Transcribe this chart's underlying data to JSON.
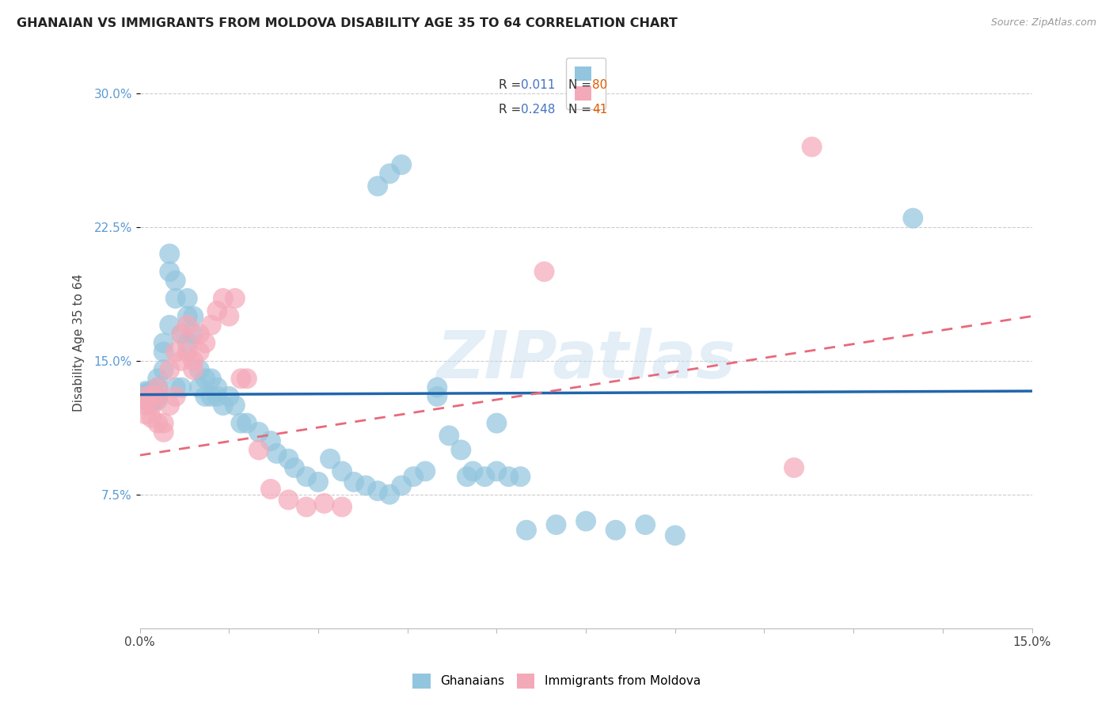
{
  "title": "GHANAIAN VS IMMIGRANTS FROM MOLDOVA DISABILITY AGE 35 TO 64 CORRELATION CHART",
  "source": "Source: ZipAtlas.com",
  "ylabel": "Disability Age 35 to 64",
  "color_blue": "#92c5de",
  "color_pink": "#f4a9b8",
  "line_color_blue": "#2166ac",
  "line_color_pink": "#e8697a",
  "watermark": "ZIPatlas",
  "ytick_vals": [
    0.075,
    0.15,
    0.225,
    0.3
  ],
  "ytick_labels": [
    "7.5%",
    "15.0%",
    "22.5%",
    "30.0%"
  ],
  "xlim": [
    0.0,
    0.15
  ],
  "ylim": [
    0.0,
    0.32
  ],
  "ghana_blue_line_y0": 0.131,
  "ghana_blue_line_y1": 0.133,
  "moldova_pink_line_y0": 0.097,
  "moldova_pink_line_y1": 0.175,
  "ghana_x": [
    0.001,
    0.001,
    0.001,
    0.001,
    0.001,
    0.002,
    0.002,
    0.002,
    0.002,
    0.002,
    0.003,
    0.003,
    0.003,
    0.003,
    0.004,
    0.004,
    0.004,
    0.005,
    0.005,
    0.005,
    0.006,
    0.006,
    0.006,
    0.007,
    0.007,
    0.008,
    0.008,
    0.008,
    0.009,
    0.009,
    0.01,
    0.01,
    0.011,
    0.011,
    0.012,
    0.012,
    0.013,
    0.013,
    0.014,
    0.015,
    0.016,
    0.017,
    0.018,
    0.02,
    0.022,
    0.023,
    0.025,
    0.026,
    0.028,
    0.03,
    0.032,
    0.034,
    0.036,
    0.038,
    0.04,
    0.042,
    0.044,
    0.046,
    0.048,
    0.05,
    0.052,
    0.054,
    0.056,
    0.058,
    0.06,
    0.062,
    0.064,
    0.04,
    0.042,
    0.044,
    0.05,
    0.055,
    0.06,
    0.065,
    0.07,
    0.075,
    0.08,
    0.085,
    0.09,
    0.13
  ],
  "ghana_y": [
    0.13,
    0.131,
    0.132,
    0.133,
    0.128,
    0.129,
    0.131,
    0.132,
    0.127,
    0.133,
    0.13,
    0.135,
    0.128,
    0.14,
    0.145,
    0.155,
    0.16,
    0.17,
    0.2,
    0.21,
    0.135,
    0.185,
    0.195,
    0.135,
    0.165,
    0.16,
    0.175,
    0.185,
    0.165,
    0.175,
    0.135,
    0.145,
    0.13,
    0.14,
    0.13,
    0.14,
    0.13,
    0.135,
    0.125,
    0.13,
    0.125,
    0.115,
    0.115,
    0.11,
    0.105,
    0.098,
    0.095,
    0.09,
    0.085,
    0.082,
    0.095,
    0.088,
    0.082,
    0.08,
    0.077,
    0.075,
    0.08,
    0.085,
    0.088,
    0.13,
    0.108,
    0.1,
    0.088,
    0.085,
    0.088,
    0.085,
    0.085,
    0.248,
    0.255,
    0.26,
    0.135,
    0.085,
    0.115,
    0.055,
    0.058,
    0.06,
    0.055,
    0.058,
    0.052,
    0.23
  ],
  "moldova_x": [
    0.001,
    0.001,
    0.001,
    0.001,
    0.002,
    0.002,
    0.002,
    0.003,
    0.003,
    0.003,
    0.004,
    0.004,
    0.005,
    0.005,
    0.006,
    0.006,
    0.007,
    0.007,
    0.008,
    0.008,
    0.009,
    0.009,
    0.01,
    0.01,
    0.011,
    0.012,
    0.013,
    0.014,
    0.015,
    0.016,
    0.017,
    0.018,
    0.02,
    0.022,
    0.025,
    0.028,
    0.031,
    0.034,
    0.068,
    0.11,
    0.113
  ],
  "moldova_y": [
    0.13,
    0.128,
    0.125,
    0.12,
    0.125,
    0.13,
    0.118,
    0.13,
    0.135,
    0.115,
    0.115,
    0.11,
    0.125,
    0.145,
    0.13,
    0.155,
    0.15,
    0.165,
    0.17,
    0.155,
    0.145,
    0.15,
    0.155,
    0.165,
    0.16,
    0.17,
    0.178,
    0.185,
    0.175,
    0.185,
    0.14,
    0.14,
    0.1,
    0.078,
    0.072,
    0.068,
    0.07,
    0.068,
    0.2,
    0.09,
    0.27
  ]
}
